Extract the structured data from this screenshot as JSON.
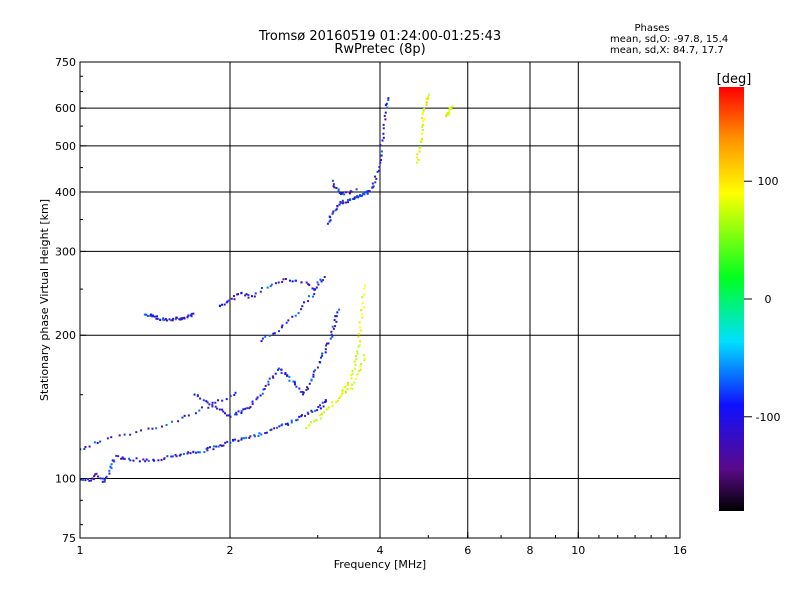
{
  "chart_data": {
    "type": "scatter",
    "title": "Tromsø 20160519 01:24:00-01:25:43",
    "subtitle": "RwPretec (8p)",
    "stats": {
      "heading": "Phases",
      "line1": "mean, sd,O: -97.8, 15.4",
      "line2": "mean, sd,X:  84.7, 17.7"
    },
    "xlabel": "Frequency [MHz]",
    "ylabel": "Stationary phase Virtual Height [km]",
    "x_scale": "log",
    "y_scale": "log",
    "xlim": [
      1,
      16
    ],
    "ylim": [
      75,
      750
    ],
    "x_ticks": [
      {
        "value": 1,
        "label": "1"
      },
      {
        "value": 2,
        "label": "2"
      },
      {
        "value": 4,
        "label": "4"
      },
      {
        "value": 6,
        "label": "6"
      },
      {
        "value": 8,
        "label": "8"
      },
      {
        "value": 10,
        "label": "10"
      },
      {
        "value": 16,
        "label": "16"
      }
    ],
    "x_gridlines": [
      2,
      4,
      6,
      8,
      10
    ],
    "y_ticks": [
      {
        "value": 75,
        "label": "75"
      },
      {
        "value": 100,
        "label": "100"
      },
      {
        "value": 200,
        "label": "200"
      },
      {
        "value": 300,
        "label": "300"
      },
      {
        "value": 400,
        "label": "400"
      },
      {
        "value": 500,
        "label": "500"
      },
      {
        "value": 600,
        "label": "600"
      },
      {
        "value": 750,
        "label": "750"
      }
    ],
    "y_gridlines": [
      100,
      200,
      300,
      400,
      500,
      600
    ],
    "grid": true,
    "colorbar": {
      "label": "[deg]",
      "range": [
        -180,
        180
      ],
      "ticks": [
        {
          "value": 100,
          "label": "100"
        },
        {
          "value": 0,
          "label": "0"
        },
        {
          "value": -100,
          "label": "-100"
        }
      ]
    },
    "series": [
      {
        "mode": "O",
        "phase_mean": -97.8,
        "phase_sd": 15.4,
        "traces": [
          {
            "points": [
              [
                1.0,
                100
              ],
              [
                1.05,
                99
              ],
              [
                1.08,
                102
              ],
              [
                1.12,
                98
              ],
              [
                1.15,
                105
              ],
              [
                1.18,
                111
              ],
              [
                1.25,
                110
              ],
              [
                1.35,
                109
              ],
              [
                1.45,
                110
              ],
              [
                1.55,
                112
              ],
              [
                1.65,
                113
              ],
              [
                1.75,
                114
              ],
              [
                1.85,
                116
              ],
              [
                1.95,
                118
              ],
              [
                2.05,
                120
              ],
              [
                2.15,
                122
              ],
              [
                2.3,
                124
              ],
              [
                2.45,
                127
              ],
              [
                2.6,
                130
              ],
              [
                2.75,
                134
              ],
              [
                2.9,
                138
              ],
              [
                3.05,
                142
              ],
              [
                3.15,
                146
              ]
            ]
          },
          {
            "points": [
              [
                1.35,
                222
              ],
              [
                1.4,
                219
              ],
              [
                1.45,
                217
              ],
              [
                1.5,
                216
              ],
              [
                1.55,
                216
              ],
              [
                1.6,
                217
              ],
              [
                1.65,
                219
              ],
              [
                1.7,
                221
              ]
            ]
          },
          {
            "points": [
              [
                1.7,
                150
              ],
              [
                1.8,
                145
              ],
              [
                1.9,
                140
              ],
              [
                2.0,
                135
              ],
              [
                2.1,
                138
              ],
              [
                2.2,
                142
              ],
              [
                2.3,
                150
              ],
              [
                2.4,
                160
              ],
              [
                2.5,
                170
              ],
              [
                2.6,
                165
              ],
              [
                2.7,
                158
              ],
              [
                2.8,
                150
              ],
              [
                2.9,
                160
              ],
              [
                3.0,
                172
              ],
              [
                3.1,
                185
              ],
              [
                3.2,
                198
              ],
              [
                3.25,
                212
              ],
              [
                3.3,
                230
              ]
            ]
          },
          {
            "points": [
              [
                2.3,
                195
              ],
              [
                2.5,
                205
              ],
              [
                2.7,
                220
              ],
              [
                2.9,
                240
              ],
              [
                3.0,
                255
              ],
              [
                3.1,
                265
              ]
            ]
          },
          {
            "points": [
              [
                1.9,
                230
              ],
              [
                2.0,
                237
              ],
              [
                2.1,
                245
              ],
              [
                2.2,
                240
              ],
              [
                2.4,
                255
              ],
              [
                2.6,
                262
              ],
              [
                2.8,
                258
              ],
              [
                3.0,
                250
              ]
            ]
          },
          {
            "points": [
              [
                3.15,
                345
              ],
              [
                3.2,
                360
              ],
              [
                3.3,
                375
              ],
              [
                3.4,
                382
              ],
              [
                3.5,
                385
              ],
              [
                3.6,
                390
              ],
              [
                3.7,
                395
              ],
              [
                3.8,
                400
              ],
              [
                3.9,
                420
              ],
              [
                4.0,
                460
              ],
              [
                4.05,
                520
              ],
              [
                4.1,
                590
              ],
              [
                4.15,
                640
              ]
            ]
          },
          {
            "points": [
              [
                3.2,
                420
              ],
              [
                3.3,
                400
              ],
              [
                3.4,
                395
              ],
              [
                3.6,
                405
              ]
            ]
          },
          {
            "points": [
              [
                1.0,
                115
              ],
              [
                1.1,
                120
              ],
              [
                1.3,
                125
              ],
              [
                1.5,
                130
              ],
              [
                1.7,
                138
              ],
              [
                1.9,
                145
              ],
              [
                2.1,
                152
              ]
            ]
          }
        ]
      },
      {
        "mode": "X",
        "phase_mean": 84.7,
        "phase_sd": 17.7,
        "traces": [
          {
            "points": [
              [
                2.85,
                128
              ],
              [
                3.0,
                133
              ],
              [
                3.15,
                140
              ],
              [
                3.3,
                148
              ],
              [
                3.45,
                158
              ],
              [
                3.55,
                170
              ],
              [
                3.6,
                185
              ],
              [
                3.65,
                205
              ],
              [
                3.7,
                230
              ],
              [
                3.72,
                260
              ]
            ]
          },
          {
            "points": [
              [
                3.35,
                150
              ],
              [
                3.5,
                155
              ],
              [
                3.65,
                170
              ],
              [
                3.75,
                185
              ]
            ]
          },
          {
            "points": [
              [
                4.75,
                460
              ],
              [
                4.8,
                500
              ],
              [
                4.85,
                540
              ],
              [
                4.9,
                580
              ],
              [
                4.95,
                620
              ],
              [
                5.0,
                640
              ]
            ]
          },
          {
            "points": [
              [
                5.4,
                575
              ],
              [
                5.5,
                590
              ],
              [
                5.6,
                610
              ]
            ]
          }
        ]
      }
    ]
  }
}
